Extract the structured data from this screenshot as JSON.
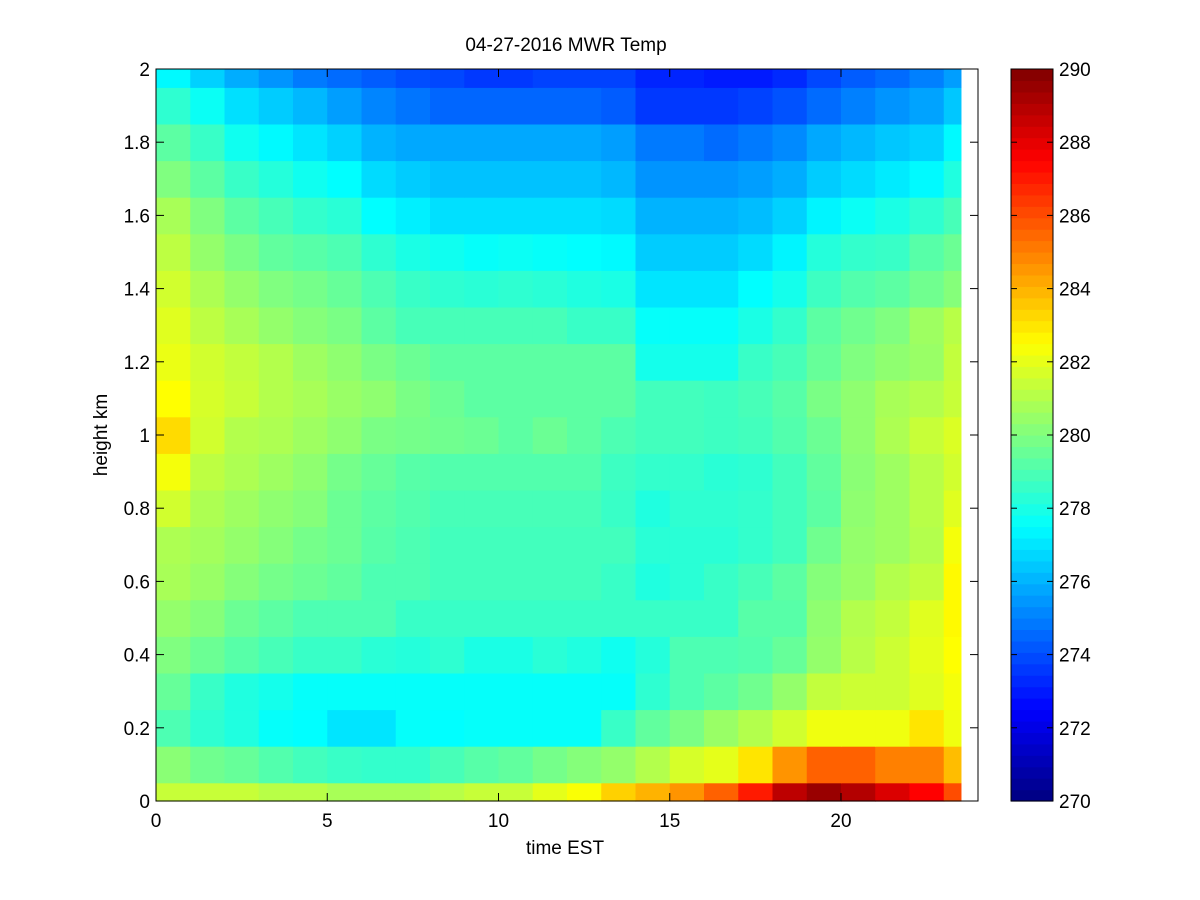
{
  "chart_data": {
    "type": "heatmap",
    "title": "04-27-2016 MWR Temp",
    "xlabel": "time EST",
    "ylabel": "height km",
    "xlim": [
      0,
      24
    ],
    "ylim": [
      0,
      2
    ],
    "x_ticks": [
      0,
      5,
      10,
      15,
      20
    ],
    "y_ticks": [
      0,
      0.2,
      0.4,
      0.6,
      0.8,
      1,
      1.2,
      1.4,
      1.6,
      1.8,
      2
    ],
    "x_tick_labels": [
      "0",
      "5",
      "10",
      "15",
      "20"
    ],
    "y_tick_labels": [
      "0",
      "0.2",
      "0.4",
      "0.6",
      "0.8",
      "1",
      "1.2",
      "1.4",
      "1.6",
      "1.8",
      "2"
    ],
    "colorbar": {
      "range": [
        270,
        290
      ],
      "ticks": [
        270,
        272,
        274,
        276,
        278,
        280,
        282,
        284,
        286,
        288,
        290
      ],
      "tick_labels": [
        "270",
        "272",
        "274",
        "276",
        "278",
        "280",
        "282",
        "284",
        "286",
        "288",
        "290"
      ],
      "colormap": "jet"
    },
    "time_bins": [
      0,
      1,
      2,
      3,
      4,
      5,
      6,
      7,
      8,
      9,
      10,
      11,
      12,
      13,
      14,
      15,
      16,
      17,
      18,
      19,
      20,
      21,
      22,
      23,
      23.5
    ],
    "height_bins": [
      0,
      0.05,
      0.15,
      0.25,
      0.35,
      0.45,
      0.55,
      0.65,
      0.75,
      0.85,
      0.95,
      1.05,
      1.15,
      1.25,
      1.35,
      1.45,
      1.55,
      1.65,
      1.75,
      1.85,
      1.95,
      2
    ],
    "values": [
      [
        281.4,
        281.4,
        281.4,
        281.1,
        281.1,
        280.8,
        280.8,
        280.8,
        281.1,
        281.4,
        281.4,
        282.0,
        282.4,
        283.4,
        284.0,
        284.6,
        285.6,
        287.0,
        288.8,
        289.5,
        289.0,
        288.2,
        287.5,
        286.0
      ],
      [
        280.2,
        279.7,
        279.5,
        279.1,
        278.8,
        278.6,
        278.5,
        278.5,
        278.9,
        279.2,
        279.4,
        279.8,
        280.1,
        280.4,
        281.0,
        281.7,
        282.0,
        283.0,
        284.6,
        285.6,
        285.6,
        285.0,
        285.0,
        283.8
      ],
      [
        279.0,
        278.4,
        278.1,
        277.6,
        277.5,
        277.0,
        277.0,
        277.6,
        277.5,
        277.6,
        277.6,
        277.6,
        277.6,
        278.6,
        279.4,
        279.9,
        280.5,
        281.0,
        281.6,
        282.2,
        282.2,
        282.2,
        283.0,
        282.2
      ],
      [
        279.5,
        278.6,
        278.1,
        277.9,
        277.6,
        277.6,
        277.6,
        277.6,
        277.6,
        277.6,
        277.6,
        277.6,
        277.6,
        277.6,
        278.4,
        279.0,
        279.3,
        279.7,
        280.4,
        281.3,
        281.5,
        281.5,
        281.9,
        282.3
      ],
      [
        280.0,
        279.6,
        279.2,
        278.9,
        278.6,
        278.6,
        278.3,
        278.2,
        278.4,
        278.0,
        278.0,
        278.3,
        278.1,
        277.8,
        278.2,
        279.0,
        279.0,
        279.1,
        279.5,
        280.4,
        281.1,
        281.5,
        282.0,
        282.5
      ],
      [
        280.4,
        280.1,
        279.6,
        279.3,
        279.0,
        279.0,
        279.0,
        278.6,
        278.6,
        278.6,
        278.6,
        278.6,
        278.6,
        278.6,
        278.6,
        278.6,
        278.6,
        279.2,
        279.2,
        280.3,
        281.0,
        281.3,
        281.9,
        282.6
      ],
      [
        280.8,
        280.5,
        280.1,
        279.8,
        279.6,
        279.4,
        279.0,
        279.0,
        278.8,
        278.8,
        278.8,
        278.8,
        278.8,
        278.6,
        278.1,
        278.3,
        278.6,
        278.9,
        279.3,
        280.1,
        280.5,
        281.0,
        281.3,
        282.6
      ],
      [
        280.9,
        280.7,
        280.4,
        280.1,
        279.8,
        279.6,
        279.2,
        279.0,
        278.8,
        278.8,
        278.8,
        278.8,
        278.8,
        278.8,
        278.3,
        278.3,
        278.3,
        278.5,
        278.8,
        279.7,
        280.4,
        280.6,
        281.0,
        282.3
      ],
      [
        281.6,
        280.9,
        280.6,
        280.3,
        280.1,
        279.6,
        279.3,
        279.1,
        278.9,
        278.9,
        278.9,
        278.9,
        278.9,
        278.6,
        278.1,
        278.4,
        278.4,
        278.5,
        278.8,
        279.3,
        280.3,
        280.6,
        281.1,
        281.9
      ],
      [
        282.3,
        281.2,
        280.9,
        280.6,
        280.3,
        279.8,
        279.5,
        279.2,
        279.1,
        279.1,
        279.1,
        279.1,
        279.1,
        278.7,
        278.5,
        278.5,
        278.3,
        278.4,
        278.8,
        279.4,
        280.2,
        280.6,
        281.1,
        281.6
      ],
      [
        283.2,
        281.6,
        281.0,
        280.9,
        280.6,
        280.3,
        279.9,
        279.8,
        279.7,
        279.6,
        279.3,
        279.6,
        279.3,
        279.0,
        278.8,
        278.8,
        278.7,
        278.8,
        279.1,
        279.6,
        280.3,
        280.9,
        281.4,
        281.8
      ],
      [
        282.5,
        281.7,
        281.4,
        281.0,
        280.8,
        280.5,
        280.3,
        279.9,
        279.6,
        279.3,
        279.3,
        279.3,
        279.3,
        279.3,
        278.8,
        278.8,
        278.7,
        278.9,
        279.2,
        279.9,
        280.3,
        280.8,
        281.0,
        281.4
      ],
      [
        282.1,
        281.6,
        281.3,
        281.0,
        280.6,
        280.3,
        279.9,
        279.6,
        279.3,
        279.3,
        279.3,
        279.3,
        279.3,
        279.3,
        277.9,
        277.9,
        277.9,
        278.6,
        278.9,
        279.5,
        280.0,
        280.3,
        280.5,
        281.3
      ],
      [
        281.9,
        281.2,
        280.8,
        280.4,
        280.1,
        279.9,
        279.3,
        278.9,
        278.9,
        278.9,
        278.9,
        278.9,
        278.6,
        278.6,
        277.6,
        277.6,
        277.6,
        278.0,
        278.5,
        279.3,
        279.7,
        280.0,
        280.6,
        281.1
      ],
      [
        281.6,
        280.9,
        280.4,
        280.0,
        279.8,
        279.5,
        279.0,
        278.6,
        278.4,
        278.3,
        278.4,
        278.3,
        278.1,
        278.0,
        277.0,
        277.0,
        277.0,
        277.5,
        277.9,
        278.7,
        279.1,
        279.3,
        279.7,
        280.1
      ],
      [
        281.2,
        280.4,
        279.9,
        279.4,
        279.2,
        279.0,
        278.4,
        278.0,
        277.8,
        277.6,
        277.7,
        277.6,
        277.5,
        277.4,
        276.5,
        276.5,
        276.5,
        276.8,
        277.3,
        278.2,
        278.5,
        278.6,
        279.2,
        279.6
      ],
      [
        280.8,
        280.0,
        279.3,
        278.9,
        278.5,
        278.3,
        277.5,
        277.2,
        276.9,
        276.9,
        276.9,
        276.9,
        276.9,
        276.8,
        276.0,
        276.0,
        276.0,
        276.2,
        276.6,
        277.3,
        277.7,
        278.0,
        278.4,
        278.9
      ],
      [
        280.0,
        279.3,
        278.6,
        278.2,
        277.8,
        277.5,
        276.8,
        276.5,
        276.3,
        276.3,
        276.3,
        276.3,
        276.3,
        276.1,
        275.4,
        275.4,
        275.4,
        275.6,
        275.9,
        276.5,
        276.8,
        277.1,
        277.4,
        278.1
      ],
      [
        279.3,
        278.6,
        277.8,
        277.4,
        277.0,
        276.6,
        276.0,
        275.8,
        275.8,
        275.8,
        275.8,
        275.8,
        275.8,
        275.6,
        274.9,
        274.9,
        274.6,
        274.9,
        275.2,
        275.8,
        276.1,
        276.4,
        276.6,
        277.4
      ],
      [
        278.4,
        277.7,
        276.9,
        276.5,
        276.1,
        275.6,
        275.1,
        274.8,
        274.5,
        274.5,
        274.5,
        274.5,
        274.5,
        274.3,
        273.6,
        273.6,
        273.6,
        273.8,
        274.1,
        274.6,
        275.0,
        275.4,
        275.7,
        276.4
      ],
      [
        277.4,
        276.6,
        275.9,
        275.4,
        274.9,
        274.6,
        274.3,
        274.0,
        273.9,
        273.6,
        273.6,
        273.8,
        273.8,
        273.8,
        273.2,
        273.2,
        273.0,
        273.0,
        273.3,
        273.9,
        274.3,
        274.6,
        275.0,
        275.6
      ]
    ]
  }
}
